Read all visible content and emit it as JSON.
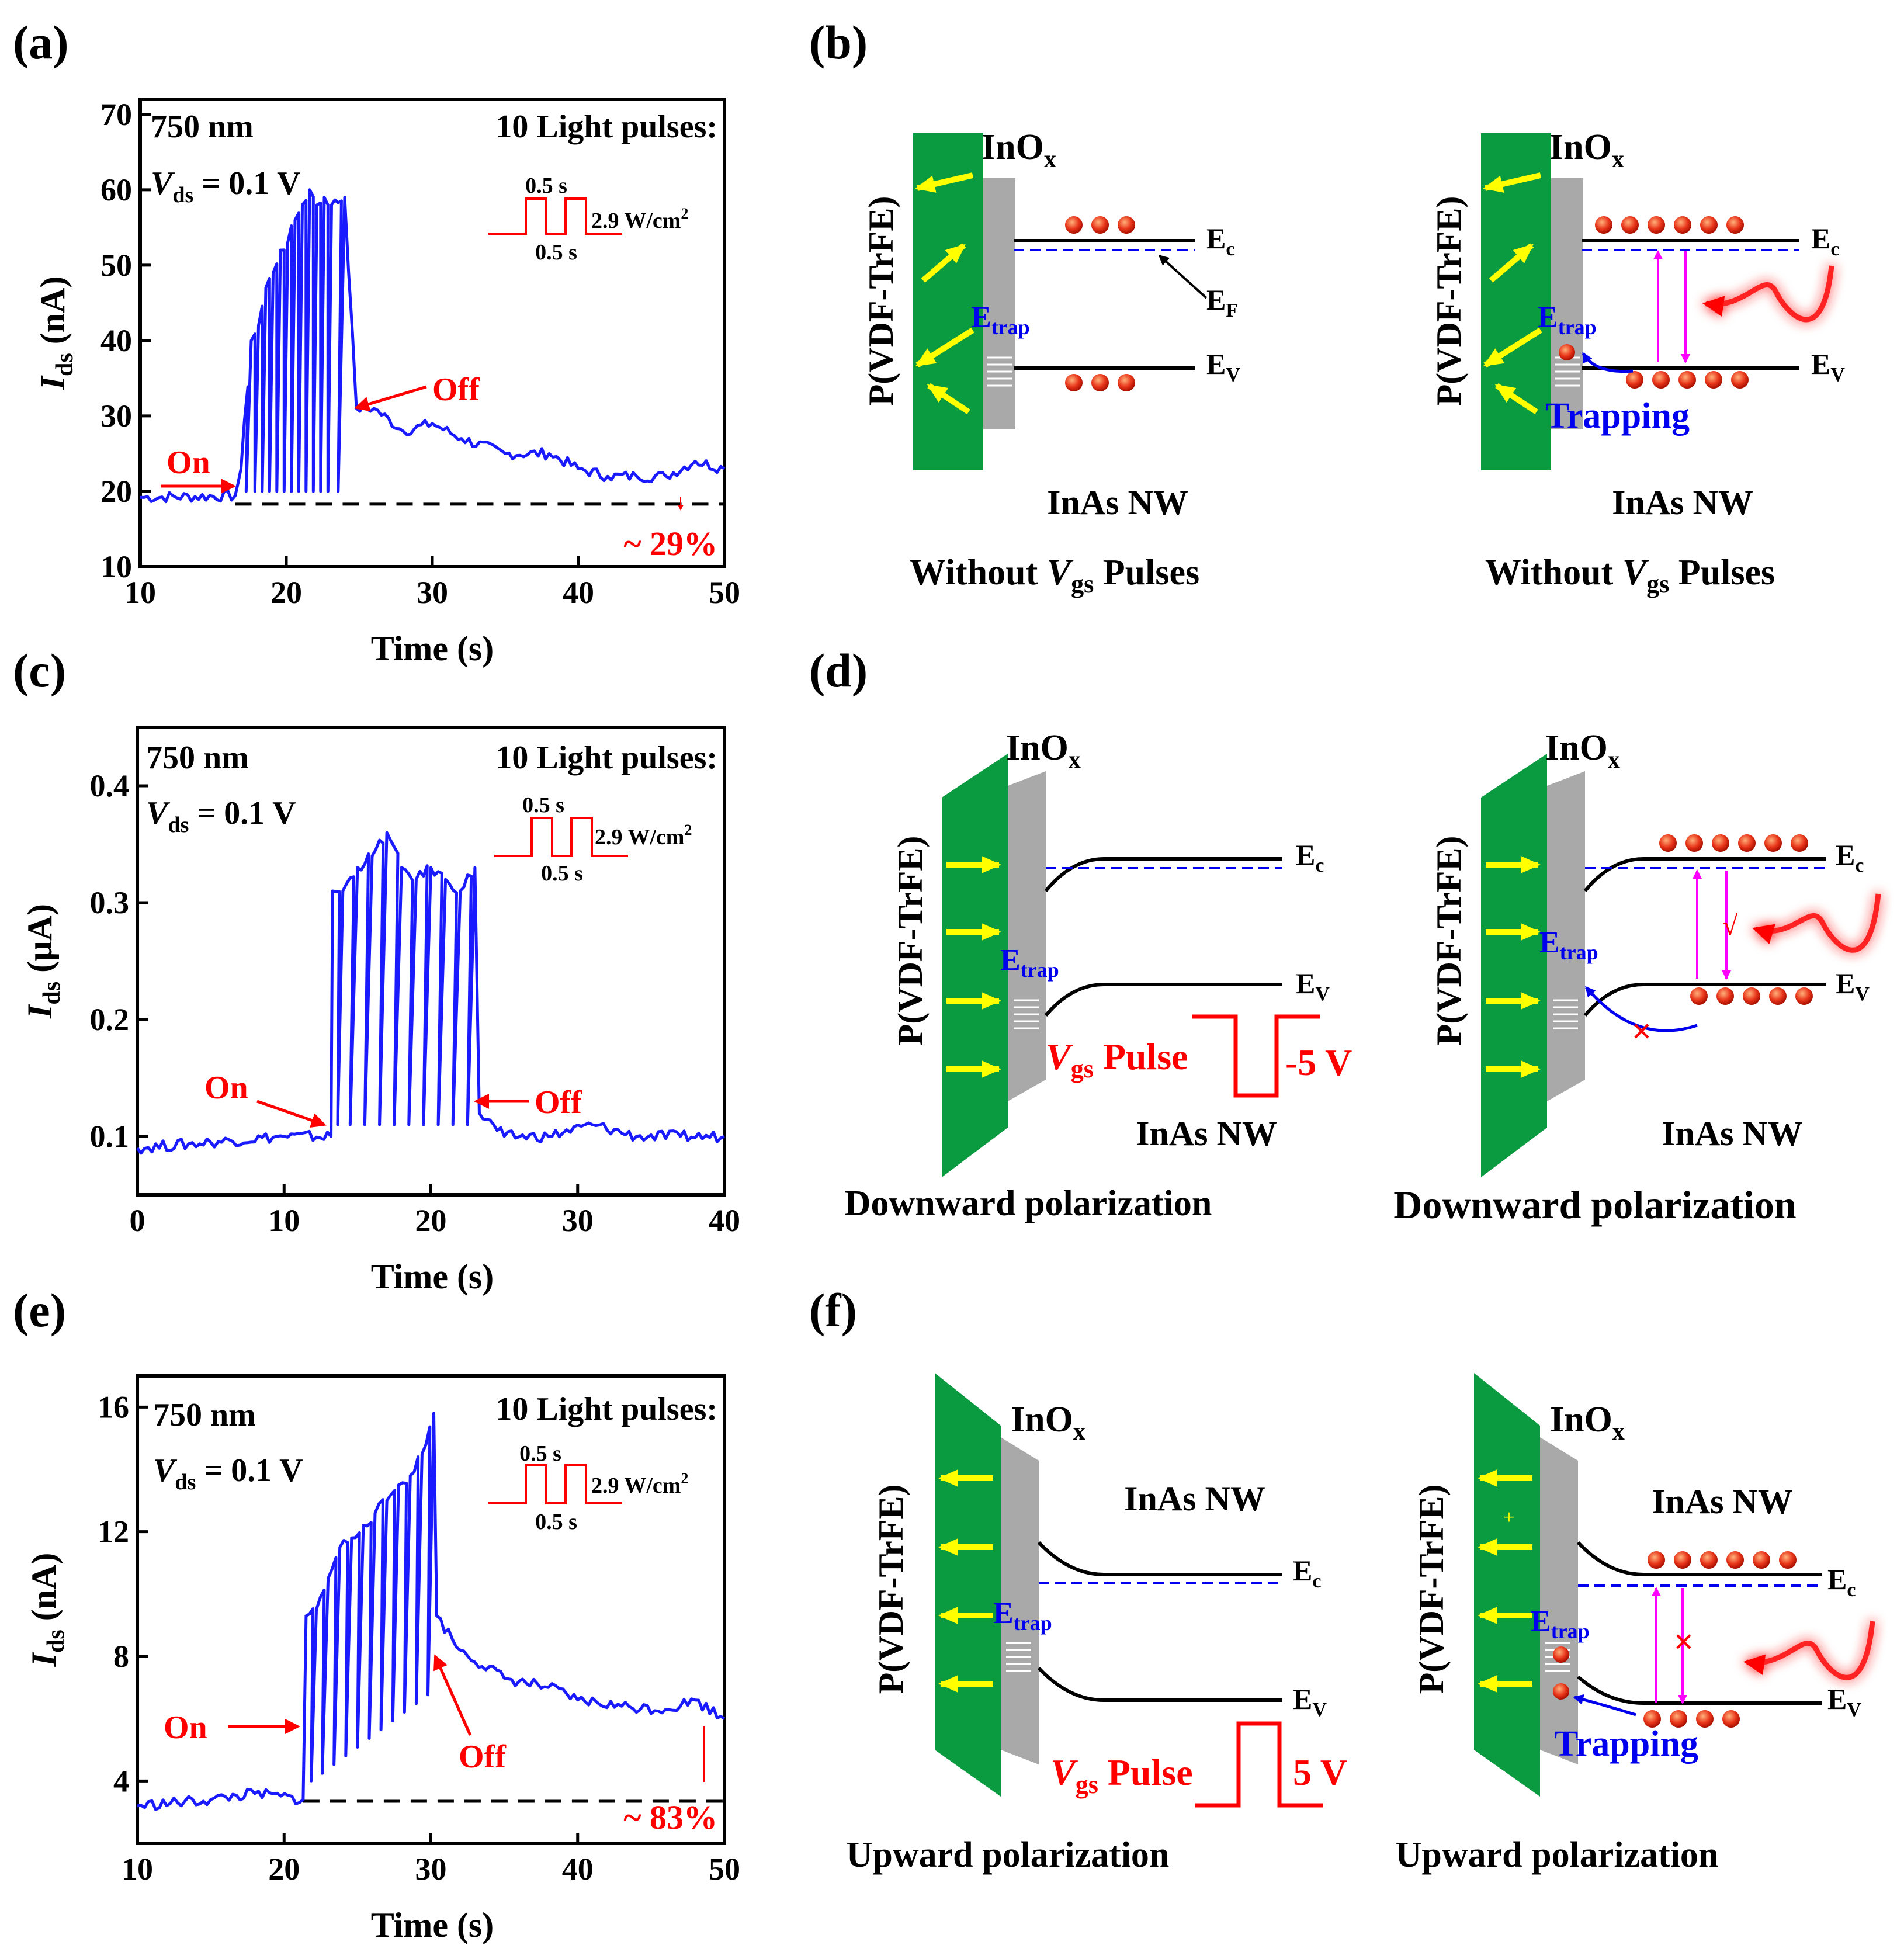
{
  "panels": {
    "a": {
      "label": "(a)"
    },
    "b": {
      "label": "(b)"
    },
    "c": {
      "label": "(c)"
    },
    "d": {
      "label": "(d)"
    },
    "e": {
      "label": "(e)"
    },
    "f": {
      "label": "(f)"
    }
  },
  "common": {
    "wavelength": "750 nm",
    "vds_sym": "V",
    "vds_sub": "ds",
    "vds_val": " = 0.1 V",
    "pulses_title": "10 Light pulses:",
    "pulse_width_top": "0.5 s",
    "pulse_width_bottom": "0.5 s",
    "power_main": "2.9 W/cm",
    "power_sup": "2",
    "on_label": "On",
    "off_label": "Off",
    "ylabel_sym": "I",
    "ylabel_sub": "ds",
    "xlabel": "Time (s)"
  },
  "chart_data": [
    {
      "panel": "a",
      "type": "line",
      "title": "",
      "xlabel": "Time (s)",
      "ylabel": "Ids (nA)",
      "ylabel_unit": " (nA)",
      "xlim": [
        10,
        50
      ],
      "ylim": [
        10,
        72
      ],
      "xticks": [
        10,
        20,
        30,
        40,
        50
      ],
      "yticks": [
        10,
        20,
        30,
        40,
        50,
        60,
        70
      ],
      "baseline": 18.3,
      "percent_label": "~ 29%",
      "series": [
        {
          "name": "Ids",
          "color": "#1a1aff",
          "x": [
            10,
            16.5,
            16.9,
            17.6,
            18.1,
            18.6,
            19.1,
            19.6,
            20.1,
            20.6,
            21.1,
            21.6,
            22.1,
            22.6,
            23.1,
            24.0,
            24.8,
            26,
            28,
            30,
            32,
            35,
            38,
            40,
            42,
            44,
            46,
            48,
            50
          ],
          "y": [
            19.2,
            19.4,
            23,
            40,
            42,
            47,
            49,
            52,
            53,
            56,
            58,
            60,
            58,
            59,
            58,
            59,
            31,
            31,
            28,
            29,
            27,
            25,
            25,
            23,
            22,
            22,
            22,
            24,
            23
          ]
        }
      ]
    },
    {
      "panel": "c",
      "type": "line",
      "title": "",
      "xlabel": "Time (s)",
      "ylabel": "Ids (µA)",
      "ylabel_unit": " (µA)",
      "xlim": [
        0,
        40
      ],
      "ylim": [
        0.05,
        0.45
      ],
      "xticks": [
        0,
        10,
        20,
        30,
        40
      ],
      "yticks": [
        0.1,
        0.2,
        0.3,
        0.4
      ],
      "baseline": null,
      "percent_label": "",
      "series": [
        {
          "name": "Ids",
          "color": "#1a1aff",
          "x": [
            0,
            5,
            10,
            13.2,
            13.3,
            14.0,
            15.0,
            16.0,
            17.0,
            18.0,
            19.0,
            20.0,
            21.0,
            22.0,
            23.0,
            23.3,
            25,
            28,
            31,
            34,
            37,
            40
          ],
          "y": [
            0.09,
            0.095,
            0.1,
            0.1,
            0.31,
            0.31,
            0.33,
            0.34,
            0.36,
            0.33,
            0.32,
            0.33,
            0.32,
            0.31,
            0.33,
            0.12,
            0.1,
            0.1,
            0.11,
            0.1,
            0.1,
            0.1
          ]
        }
      ]
    },
    {
      "panel": "e",
      "type": "line",
      "title": "",
      "xlabel": "Time (s)",
      "ylabel": "Ids (nA)",
      "ylabel_unit": " (nA)",
      "xlim": [
        10,
        50
      ],
      "ylim": [
        2,
        17
      ],
      "xticks": [
        10,
        20,
        30,
        40,
        50
      ],
      "yticks": [
        4,
        8,
        12,
        16
      ],
      "baseline": 3.35,
      "percent_label": "~ 83%",
      "series": [
        {
          "name": "Ids",
          "color": "#1a1aff",
          "x": [
            10,
            15,
            18,
            21.3,
            21.5,
            22.2,
            23.0,
            23.8,
            24.6,
            25.4,
            26.2,
            27.0,
            27.8,
            28.6,
            29.4,
            30.2,
            30.4,
            32,
            35,
            38,
            40,
            43,
            46,
            48,
            50
          ],
          "y": [
            3.2,
            3.4,
            3.6,
            3.4,
            9.3,
            9.5,
            10.5,
            11.5,
            11.8,
            12.2,
            12.6,
            13.0,
            13.5,
            13.8,
            14.5,
            15.8,
            9.3,
            8.2,
            7.3,
            7.0,
            6.6,
            6.4,
            6.3,
            6.6,
            6.0
          ]
        }
      ]
    }
  ],
  "diagrams": {
    "ferro_label": "P(VDF-TrFE)",
    "inox_main": "InO",
    "inox_sub": "x",
    "ec_main": "E",
    "ec_sub": "c",
    "ev_main": "E",
    "ev_sub": "V",
    "ef_main": "E",
    "ef_sub": "F",
    "etrap_main": "E",
    "etrap_sub": "trap",
    "nw_label": "InAs NW",
    "trapping": "Trapping",
    "vgs_sym": "V",
    "vgs_sub": "gs",
    "vgs_word": " Pulse",
    "b_caption_pre": "Without ",
    "b_caption_sym": "V",
    "b_caption_sub": "gs",
    "b_caption_post": " Pulses",
    "d_caption": "Downward polarization",
    "f_caption": "Upward polarization",
    "d_pulse_value": "-5 V",
    "f_pulse_value": "5 V",
    "cross_mark": "×",
    "check_mark": "√",
    "plus_mark": "+",
    "colors": {
      "ferro": "#0a9a40",
      "inox": "#a9a9a9",
      "dipole": "#ffff00",
      "fermi": "#0000ee",
      "carrier": "#e8351a",
      "excite": "#ff00ff",
      "light": "#ff2020",
      "text": "#000000"
    }
  }
}
